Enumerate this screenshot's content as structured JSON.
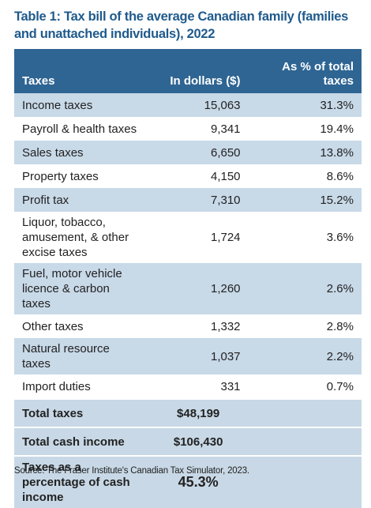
{
  "title": "Table 1: Tax bill of the average Canadian family (families and unattached individuals), 2022",
  "table": {
    "header": [
      "Taxes",
      "In dollars ($)",
      "As % of total taxes"
    ],
    "rows": [
      [
        "Income taxes",
        "15,063",
        "31.3%"
      ],
      [
        "Payroll & health taxes",
        "9,341",
        "19.4%"
      ],
      [
        "Sales taxes",
        "6,650",
        "13.8%"
      ],
      [
        "Property taxes",
        "4,150",
        "8.6%"
      ],
      [
        "Profit tax",
        "7,310",
        "15.2%"
      ],
      [
        "Liquor, tobacco, amusement, & other excise taxes",
        "1,724",
        "3.6%"
      ],
      [
        "Fuel, motor vehicle licence & carbon taxes",
        "1,260",
        "2.6%"
      ],
      [
        "Other taxes",
        "1,332",
        "2.8%"
      ],
      [
        "Natural resource taxes",
        "1,037",
        "2.2%"
      ],
      [
        "Import duties",
        "331",
        "0.7%"
      ]
    ],
    "totals": [
      [
        "Total taxes",
        "$48,199"
      ],
      [
        "Total cash income",
        "$106,430"
      ],
      [
        "Taxes as a percentage of cash income",
        "45.3%"
      ]
    ]
  },
  "source": "Source: The Fraser Institute's Canadian Tax Simulator, 2023."
}
